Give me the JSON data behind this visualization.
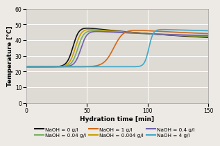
{
  "title": "",
  "xlabel": "Hydration time [min]",
  "ylabel": "Temperature [°C]",
  "xlim": [
    0,
    150
  ],
  "ylim": [
    0,
    60
  ],
  "xticks": [
    0,
    50,
    100,
    150
  ],
  "yticks": [
    0,
    10,
    20,
    30,
    40,
    50,
    60
  ],
  "background_color": "#ede9e4",
  "plot_bg_color": "#dedad4",
  "grid_color": "#ffffff",
  "series": [
    {
      "label": "NaOH = 0 g/l",
      "color": "#111111",
      "lw": 1.2,
      "base_temp": 23.0,
      "inflection": 38.5,
      "rise_scale": 2.5,
      "peak_temp": 48.5,
      "peak_time": 43,
      "end_temp": 37.0,
      "decline_tau": 120
    },
    {
      "label": "NaOH = 0.004 g/l",
      "color": "#c8a000",
      "lw": 1.2,
      "base_temp": 23.0,
      "inflection": 40.5,
      "rise_scale": 2.5,
      "peak_temp": 47.5,
      "peak_time": 45,
      "end_temp": 38.5,
      "decline_tau": 120
    },
    {
      "label": "NaOH = 0.04 g/l",
      "color": "#78b060",
      "lw": 1.2,
      "base_temp": 23.0,
      "inflection": 42.5,
      "rise_scale": 2.5,
      "peak_temp": 46.5,
      "peak_time": 47,
      "end_temp": 39.5,
      "decline_tau": 120
    },
    {
      "label": "NaOH = 0.4 g/l",
      "color": "#7060a8",
      "lw": 1.2,
      "base_temp": 23.0,
      "inflection": 45.0,
      "rise_scale": 2.5,
      "peak_temp": 46.0,
      "peak_time": 49,
      "end_temp": 40.5,
      "decline_tau": 120
    },
    {
      "label": "NaOH = 1 g/l",
      "color": "#d06818",
      "lw": 1.2,
      "base_temp": 23.0,
      "inflection": 72.0,
      "rise_scale": 4.0,
      "peak_temp": 47.0,
      "peak_time": 80,
      "end_temp": 40.5,
      "decline_tau": 120
    },
    {
      "label": "NaOH = 4 g/l",
      "color": "#40a8c8",
      "lw": 1.2,
      "base_temp": 23.0,
      "inflection": 101.0,
      "rise_scale": 1.8,
      "peak_temp": 47.0,
      "peak_time": 103,
      "end_temp": 42.0,
      "decline_tau": 200
    }
  ],
  "legend_fontsize": 5.2,
  "axis_fontsize": 6.5,
  "tick_fontsize": 5.5
}
